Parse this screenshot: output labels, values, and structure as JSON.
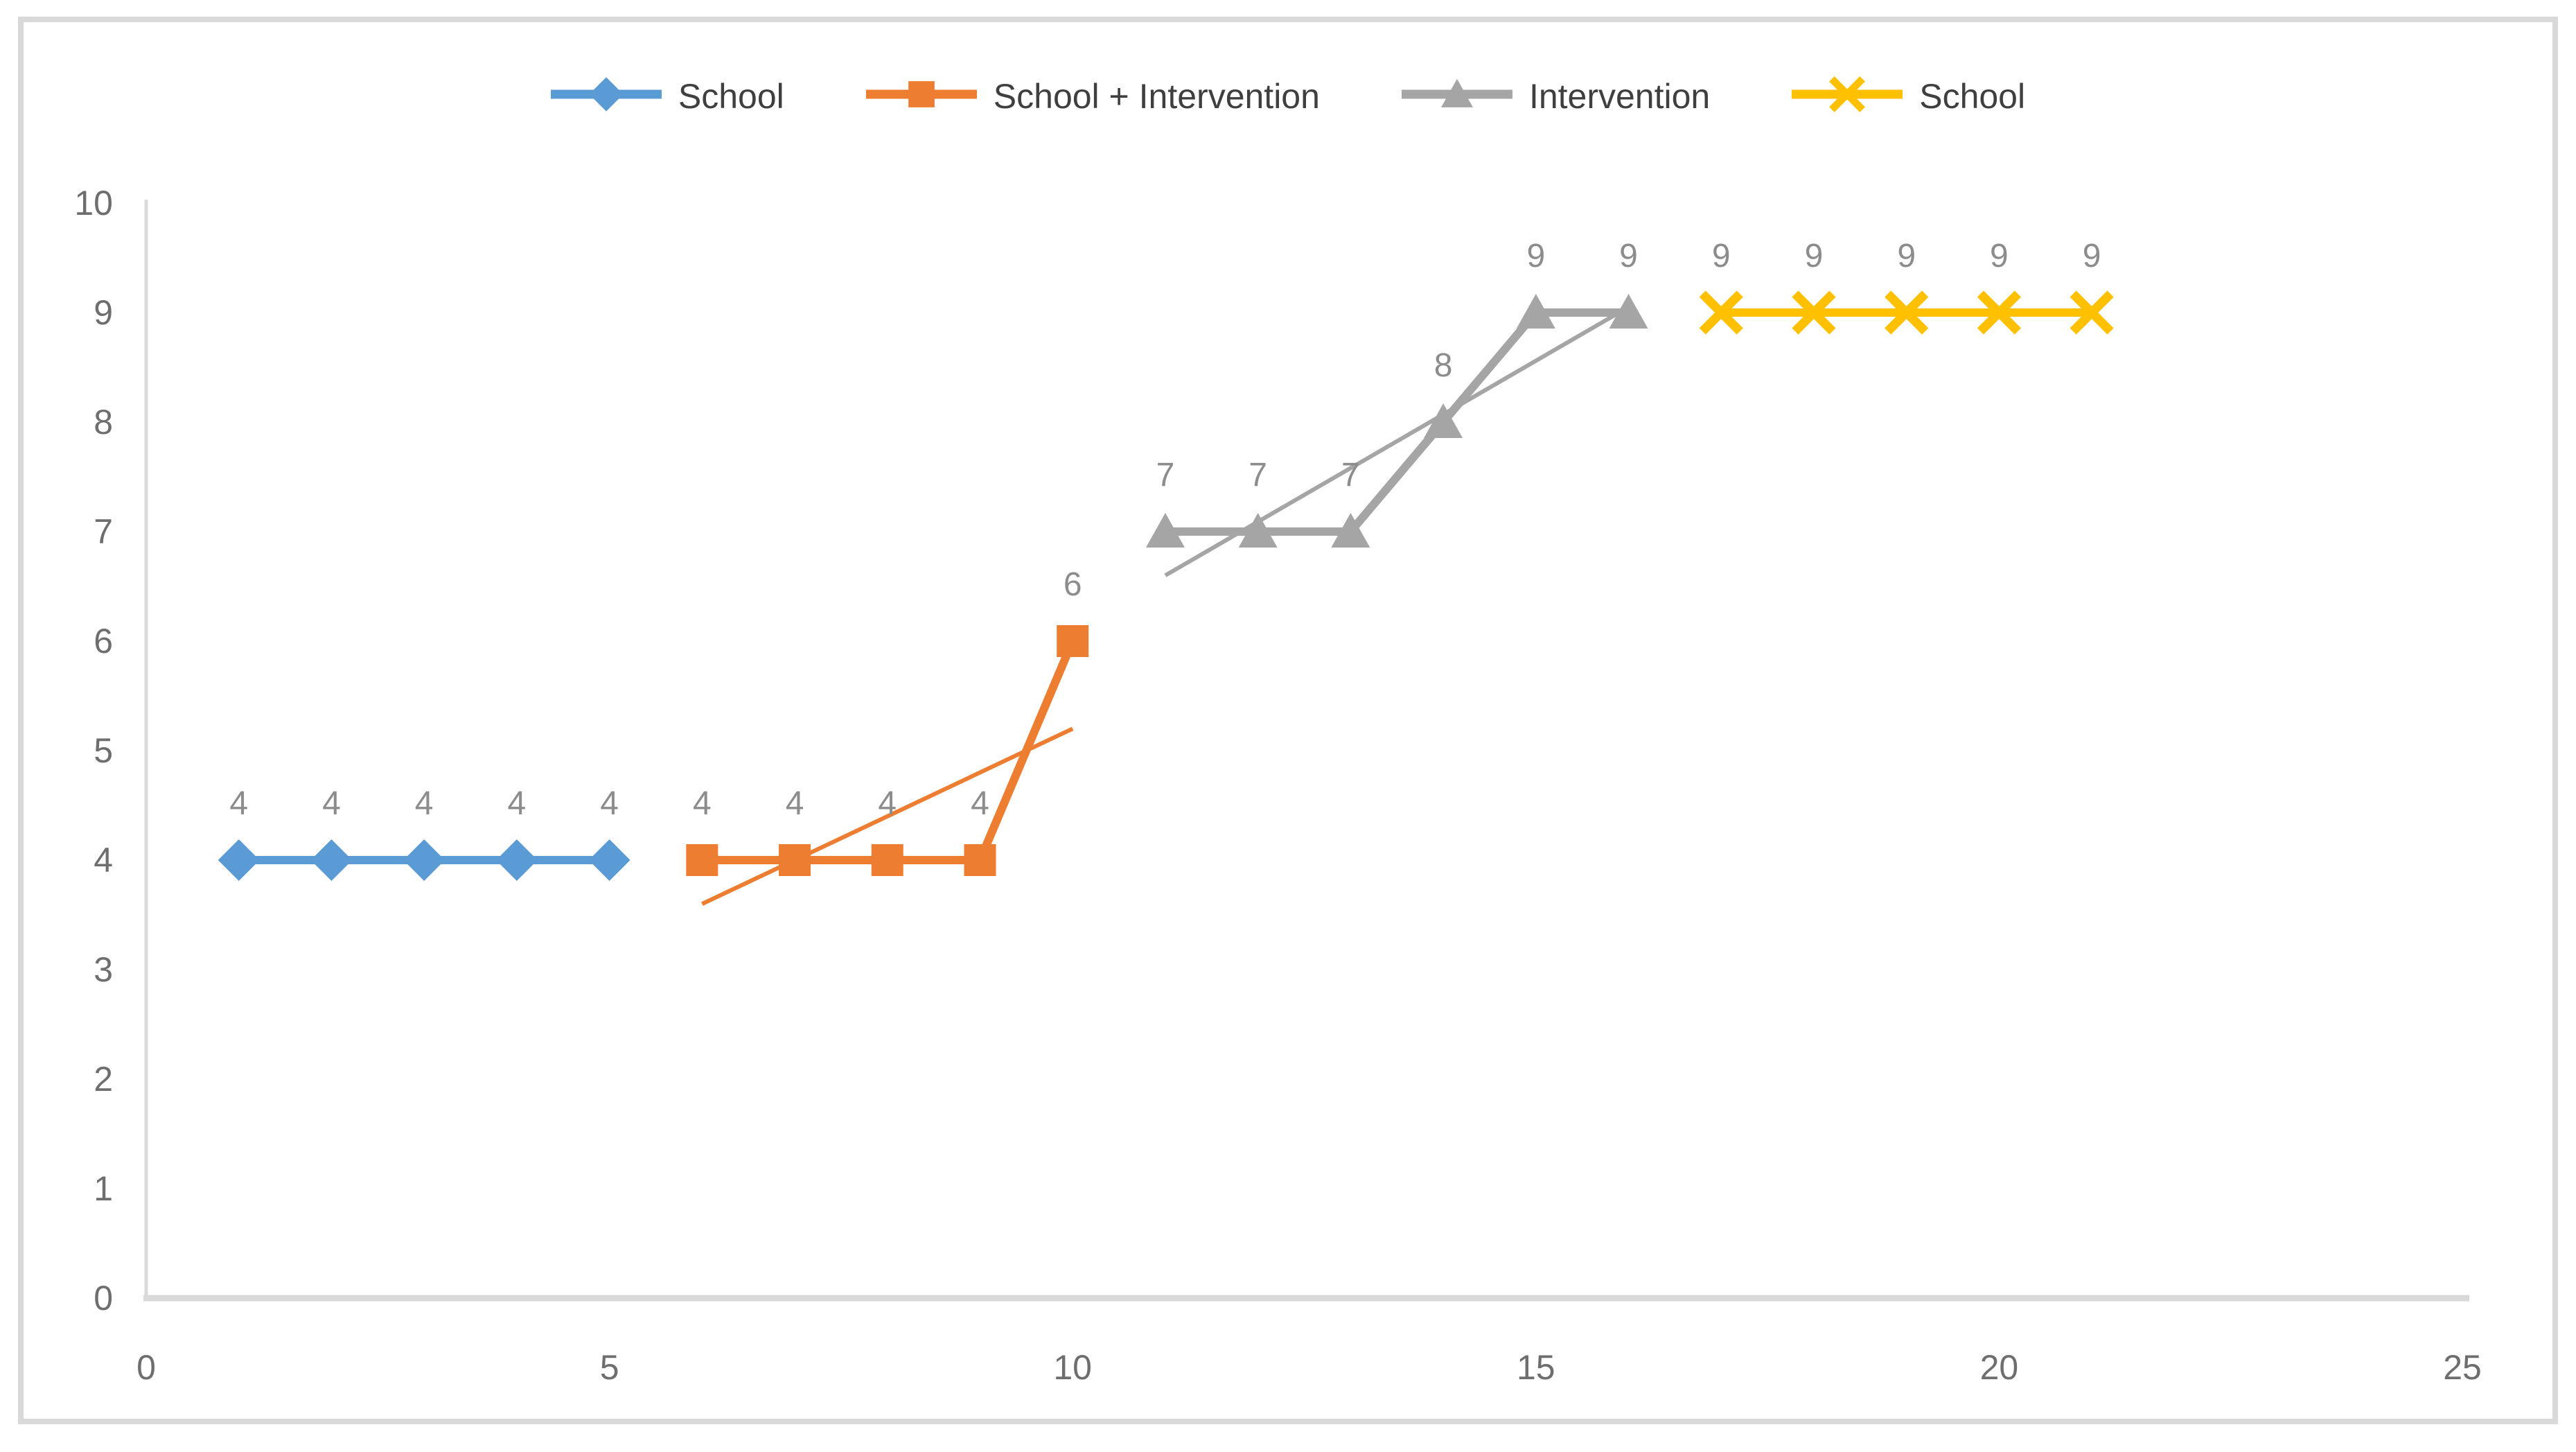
{
  "chart_data": {
    "type": "line",
    "title": "",
    "xlabel": "",
    "ylabel": "",
    "xlim": [
      0,
      25
    ],
    "ylim": [
      0,
      10
    ],
    "x_ticks": [
      "0",
      "5",
      "10",
      "15",
      "20",
      "25"
    ],
    "y_ticks": [
      "0",
      "1",
      "2",
      "3",
      "4",
      "5",
      "6",
      "7",
      "8",
      "9",
      "10"
    ],
    "grid": false,
    "legend_position": "top-center",
    "series": [
      {
        "name": "School",
        "color": "#5B9BD5",
        "marker": "diamond",
        "x": [
          1,
          2,
          3,
          4,
          5
        ],
        "y": [
          4,
          4,
          4,
          4,
          4
        ],
        "labels": [
          "4",
          "4",
          "4",
          "4",
          "4"
        ]
      },
      {
        "name": "School + Intervention",
        "color": "#ED7D31",
        "marker": "square",
        "x": [
          6,
          7,
          8,
          9,
          10
        ],
        "y": [
          4,
          4,
          4,
          4,
          6
        ],
        "labels": [
          "4",
          "4",
          "4",
          "4",
          "6"
        ],
        "trendline": {
          "x1": 6,
          "y1": 3.6,
          "x2": 10,
          "y2": 5.2
        }
      },
      {
        "name": "Intervention",
        "color": "#A5A5A5",
        "marker": "triangle",
        "x": [
          11,
          12,
          13,
          14,
          15,
          16
        ],
        "y": [
          7,
          7,
          7,
          8,
          9,
          9
        ],
        "labels": [
          "7",
          "7",
          "7",
          "8",
          "9",
          "9"
        ],
        "trendline": {
          "x1": 11,
          "y1": 6.6,
          "x2": 16,
          "y2": 9.05
        }
      },
      {
        "name": "School",
        "color": "#FFC000",
        "marker": "x",
        "x": [
          17,
          18,
          19,
          20,
          21
        ],
        "y": [
          9,
          9,
          9,
          9,
          9
        ],
        "labels": [
          "9",
          "9",
          "9",
          "9",
          "9"
        ]
      }
    ],
    "colors": {
      "axis_line": "#D9D9D9",
      "axis_text": "#6E6E6E",
      "data_label_text": "#8C8C8C",
      "legend_text": "#3F3F3F",
      "background": "#FFFFFF",
      "border": "#D9D9D9"
    }
  }
}
